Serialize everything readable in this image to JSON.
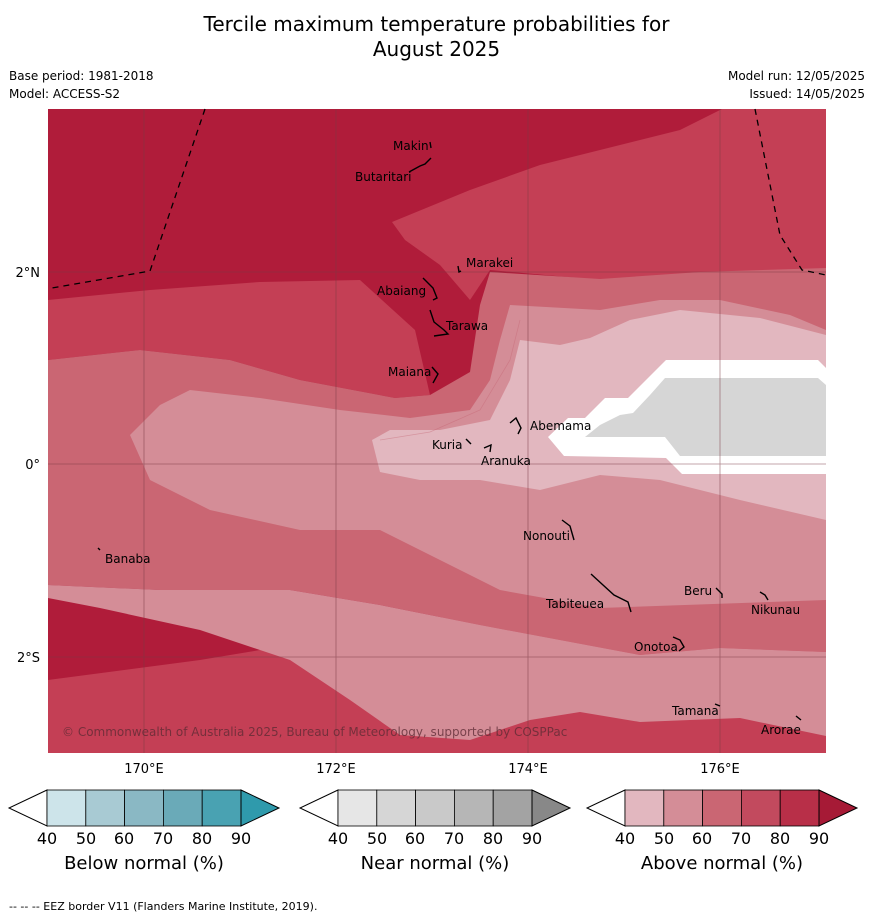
{
  "title_line1": "Tercile maximum temperature probabilities for",
  "title_line2": "August 2025",
  "meta_left": {
    "base_period": "Base period: 1981-2018",
    "model": "Model: ACCESS-S2"
  },
  "meta_right": {
    "model_run": "Model run: 12/05/2025",
    "issued": "Issued: 14/05/2025"
  },
  "map": {
    "lon_labels": [
      "170°E",
      "172°E",
      "174°E",
      "176°E"
    ],
    "lat_labels": [
      "2°N",
      "0°",
      "2°S"
    ],
    "copyright": "© Commonwealth of Australia 2025, Bureau of Meteorology, supported by COSPPac",
    "places": [
      "Makin",
      "Butaritari",
      "Marakei",
      "Abaiang",
      "Tarawa",
      "Maiana",
      "Abemama",
      "Kuria",
      "Aranuka",
      "Nonouti",
      "Banaba",
      "Tabiteuea",
      "Beru",
      "Nikunau",
      "Onotoa",
      "Tamana",
      "Arorae"
    ],
    "colors": {
      "above_90": "#b01c3a",
      "above_80": "#c43f55",
      "above_70": "#ca6673",
      "above_60": "#d48d97",
      "above_50": "#e2b7bf",
      "near_50": "#d6d6d6",
      "gap": "#ffffff"
    }
  },
  "legends": [
    {
      "title": "Below normal (%)",
      "ticks": [
        "40",
        "50",
        "60",
        "70",
        "80",
        "90"
      ],
      "colors": [
        "#cde4ea",
        "#a8cad3",
        "#8ab8c4",
        "#6aaab8",
        "#49a2b2",
        "#2f9aac"
      ]
    },
    {
      "title": "Near normal (%)",
      "ticks": [
        "40",
        "50",
        "60",
        "70",
        "80",
        "90"
      ],
      "colors": [
        "#e6e6e6",
        "#d6d6d6",
        "#c9c9c9",
        "#b6b6b6",
        "#a3a3a3",
        "#888888"
      ]
    },
    {
      "title": "Above normal (%)",
      "ticks": [
        "40",
        "50",
        "60",
        "70",
        "80",
        "90"
      ],
      "colors": [
        "#e2b7bf",
        "#d48d97",
        "#ca6673",
        "#c24a5e",
        "#b82f48",
        "#a61a36"
      ]
    }
  ],
  "footer": "--  --  -- EEZ border V11 (Flanders Marine Institute, 2019)."
}
